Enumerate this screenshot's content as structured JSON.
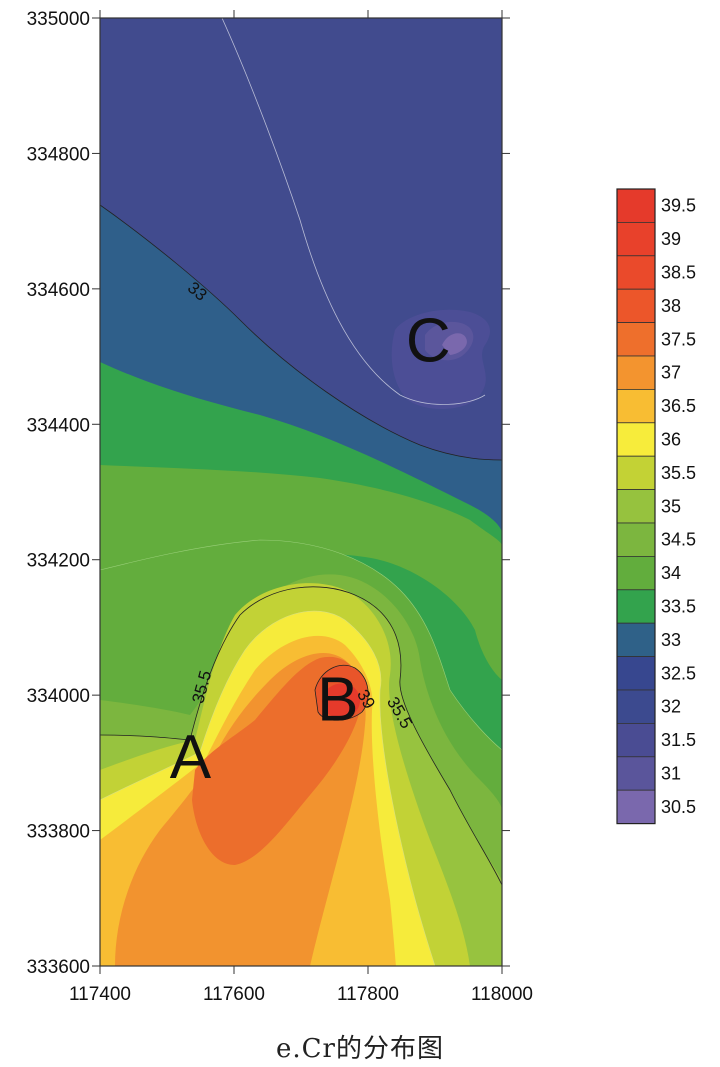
{
  "caption": "e.Cr的分布图",
  "chart_data": {
    "type": "contour",
    "variable": "Cr",
    "xlim": [
      117400,
      118000
    ],
    "ylim": [
      333600,
      335000
    ],
    "x_ticks": [
      117400,
      117600,
      117800,
      118000
    ],
    "y_ticks": [
      333600,
      333800,
      334000,
      334200,
      334400,
      334600,
      334800,
      335000
    ],
    "x_tick_labels": [
      "117400",
      "117600",
      "117800",
      "118000"
    ],
    "y_tick_labels": [
      "333600",
      "333800",
      "334000",
      "334200",
      "334400",
      "334600",
      "334800",
      "335000"
    ],
    "contour_labels": [
      {
        "text": "33",
        "x": 117540,
        "y": 334590
      },
      {
        "text": "35.5",
        "x": 117560,
        "y": 334010
      },
      {
        "text": "35.5",
        "x": 117840,
        "y": 333970
      },
      {
        "text": "39",
        "x": 117790,
        "y": 333990
      }
    ],
    "points": [
      {
        "name": "A",
        "x": 117535,
        "y": 333910
      },
      {
        "name": "B",
        "x": 117755,
        "y": 333995
      },
      {
        "name": "C",
        "x": 117890,
        "y": 334525
      }
    ],
    "colorbar": {
      "levels": [
        "39.5",
        "39",
        "38.5",
        "38",
        "37.5",
        "37",
        "36.5",
        "36",
        "35.5",
        "35",
        "34.5",
        "34",
        "33.5",
        "33",
        "32.5",
        "32",
        "31.5",
        "31",
        "30.5"
      ],
      "colors": [
        "#e53a2b",
        "#e8412b",
        "#ea4a2b",
        "#ec562a",
        "#ee6f2c",
        "#f3942f",
        "#f8bd33",
        "#f7ec3b",
        "#c3d235",
        "#96c23e",
        "#7cb63f",
        "#62ad3d",
        "#33a34d",
        "#2f6188",
        "#37478f",
        "#3c4a8f",
        "#4a4c93",
        "#5a559b",
        "#7a68ad"
      ]
    }
  }
}
